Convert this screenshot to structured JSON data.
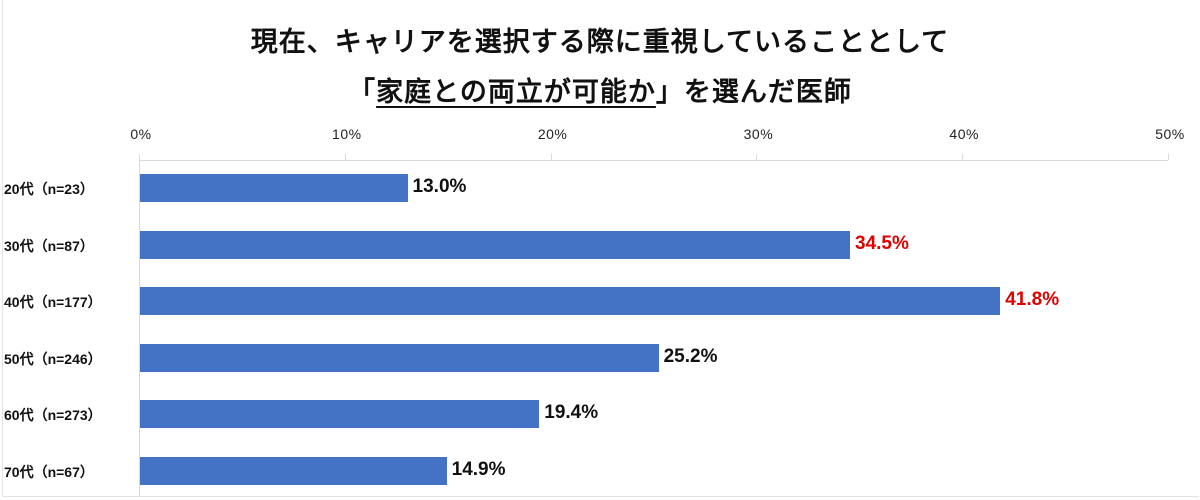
{
  "chart_data": {
    "type": "bar",
    "orientation": "horizontal",
    "title": "現在、キャリアを選択する際に重視していることとして「家庭との両立が可能か」を選んだ医師",
    "title_line1": "現在、キャリアを選択する際に重視していることとして",
    "title_line2_open": "「",
    "title_line2_underlined": "家庭との両立が可能か",
    "title_line2_close": "」を選んだ医師",
    "categories": [
      "20代（n=23）",
      "30代（n=87）",
      "40代（n=177）",
      "50代（n=246）",
      "60代（n=273）",
      "70代（n=67）"
    ],
    "values": [
      13.0,
      34.5,
      41.8,
      25.2,
      19.4,
      14.9
    ],
    "value_labels": [
      "13.0%",
      "34.5%",
      "41.8%",
      "25.2%",
      "19.4%",
      "14.9%"
    ],
    "highlighted": [
      false,
      true,
      true,
      false,
      false,
      false
    ],
    "xlabel": "",
    "ylabel": "",
    "xlim": [
      0,
      50
    ],
    "x_ticks": [
      "0%",
      "10%",
      "20%",
      "30%",
      "40%",
      "50%"
    ],
    "x_axis_position": "top",
    "grid": false,
    "legend": null,
    "colors": {
      "bar": "#4472c4",
      "label_default": "#111111",
      "label_highlight": "#e00000"
    }
  }
}
